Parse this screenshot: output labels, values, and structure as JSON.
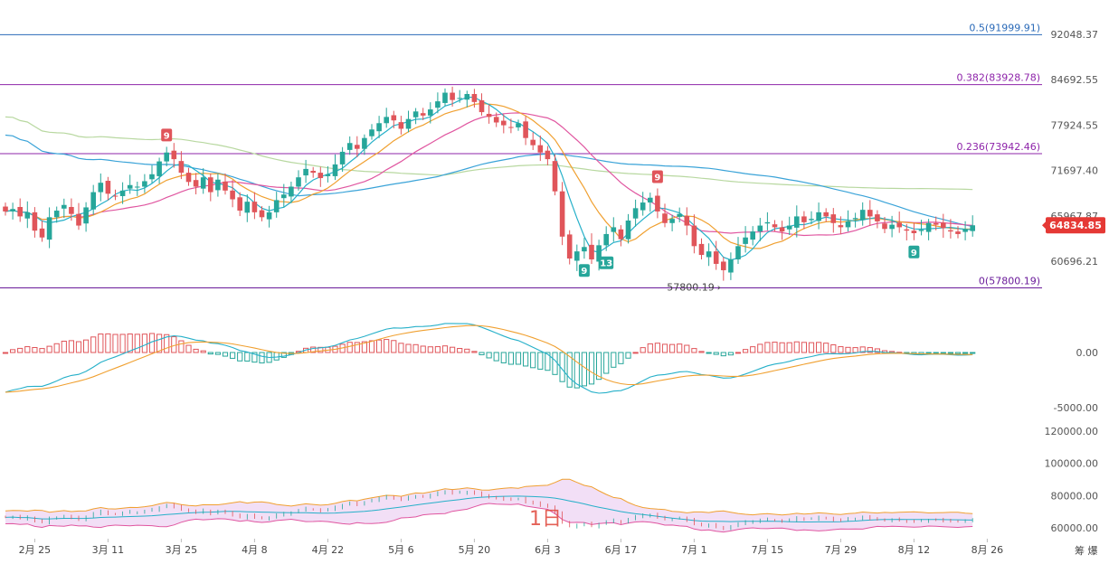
{
  "chart_data": {
    "type": "candlestick",
    "price_axis": {
      "ticks": [
        "92048.37",
        "84692.55",
        "77924.55",
        "71697.40",
        "65967.87",
        "60696.21"
      ],
      "tick_values": [
        92048.37,
        84692.55,
        77924.55,
        71697.4,
        65967.87,
        60696.21
      ],
      "range": [
        57000,
        94000
      ]
    },
    "current_price": {
      "label": "64834.85",
      "value": 64834.85,
      "color": "#e53935"
    },
    "fib_levels": [
      {
        "label": "0.5(91999.91)",
        "value": 91999.91,
        "color": "#2a6ab8"
      },
      {
        "label": "0.382(83928.78)",
        "value": 83928.78,
        "color": "#8e24aa"
      },
      {
        "label": "0.236(73942.46)",
        "value": 73942.46,
        "color": "#8e24aa"
      },
      {
        "label": "0(57800.19)",
        "value": 57800.19,
        "color": "#6a1b9a"
      }
    ],
    "low_annotation": {
      "label": "57800.19",
      "value": 57800.19
    },
    "td_markers": [
      {
        "label": "9",
        "type": "sell",
        "index": 22
      },
      {
        "label": "9",
        "type": "buy",
        "index": 79
      },
      {
        "label": "13",
        "type": "buy",
        "index": 82
      },
      {
        "label": "9",
        "type": "sell",
        "index": 89
      },
      {
        "label": "9",
        "type": "buy",
        "index": 124
      }
    ],
    "macd_axis": {
      "ticks": [
        "0.00",
        "-5000.00"
      ],
      "tick_values": [
        0,
        -5000
      ],
      "range": [
        -7000,
        4500
      ]
    },
    "volume_axis": {
      "ticks": [
        "120000.00",
        "100000.00",
        "80000.00",
        "60000.00"
      ],
      "tick_values": [
        120000,
        100000,
        80000,
        60000
      ],
      "range": [
        58000,
        122000
      ]
    },
    "x_labels": [
      "2月 25",
      "3月 11",
      "3月 25",
      "4月 8",
      "4月 22",
      "5月 6",
      "5月 20",
      "6月 3",
      "6月 17",
      "7月 1",
      "7月 15",
      "7月 29",
      "8月 12",
      "8月 26"
    ],
    "x_label_index": [
      4,
      14,
      24,
      34,
      44,
      54,
      64,
      74,
      84,
      94,
      104,
      114,
      124,
      134
    ],
    "watermark": "1日",
    "corner_text": "筹 爆",
    "colors": {
      "up": "#26a69a",
      "down": "#e0555a",
      "ma5": "#26b0c9",
      "ma10": "#f0a030",
      "ma20": "#e056a0",
      "ma60": "#3aa3d8",
      "ma120": "#b8d8a0"
    },
    "closes": [
      66500,
      66800,
      65900,
      66400,
      64200,
      63400,
      65800,
      66600,
      67300,
      66200,
      64800,
      67000,
      68900,
      70100,
      68700,
      68400,
      69100,
      69800,
      69600,
      70300,
      71200,
      72900,
      74100,
      73200,
      71400,
      70200,
      69600,
      70800,
      68900,
      70500,
      69100,
      68000,
      66600,
      67700,
      66400,
      65800,
      66400,
      67900,
      68600,
      69600,
      70800,
      71900,
      71400,
      70700,
      71200,
      72500,
      74200,
      75400,
      74600,
      76100,
      77300,
      78200,
      79100,
      78600,
      77400,
      78800,
      79900,
      79300,
      80200,
      81400,
      82700,
      81600,
      81900,
      82500,
      81300,
      79800,
      79100,
      78300,
      77900,
      77600,
      78200,
      76100,
      75100,
      74100,
      73200,
      69000,
      63500,
      61000,
      61800,
      62300,
      60900,
      62500,
      63800,
      64600,
      63200,
      65400,
      66900,
      67600,
      68200,
      66500,
      65100,
      65600,
      66200,
      64800,
      62400,
      61400,
      61800,
      60400,
      59700,
      60900,
      62400,
      63400,
      64100,
      64800,
      65200,
      64600,
      64100,
      64800,
      65900,
      65200,
      65600,
      66400,
      65900,
      65100,
      64600,
      65300,
      65700,
      66700,
      65900,
      65300,
      64400,
      64900,
      64600,
      64200,
      63900,
      64300,
      65100,
      64900,
      64500,
      64100,
      63800,
      64400,
      64834
    ]
  }
}
